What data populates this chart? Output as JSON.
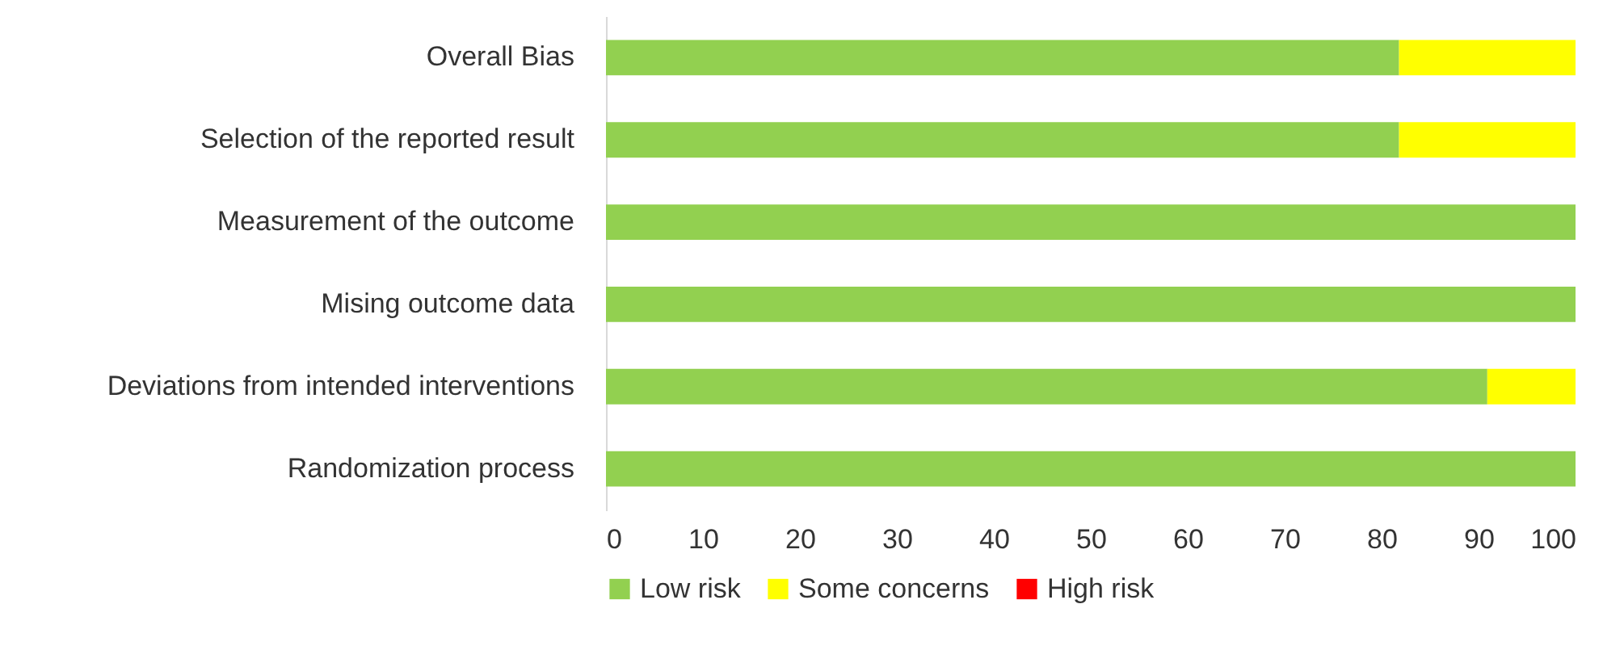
{
  "chart_data": {
    "type": "bar",
    "orientation": "horizontal",
    "stacked": true,
    "categories": [
      "Overall Bias",
      "Selection of the reported result",
      "Measurement of the outcome",
      "Mising outcome data",
      "Deviations from intended interventions",
      "Randomization process"
    ],
    "series": [
      {
        "name": "Low risk",
        "color": "#92d050",
        "values": [
          81.8,
          81.8,
          100,
          100,
          90.9,
          100
        ]
      },
      {
        "name": "Some concerns",
        "color": "#ffff00",
        "values": [
          18.2,
          18.2,
          0,
          0,
          9.1,
          0
        ]
      },
      {
        "name": "High risk",
        "color": "#ff0000",
        "values": [
          0,
          0,
          0,
          0,
          0,
          0
        ]
      }
    ],
    "xlim": [
      0,
      100
    ],
    "xticks": [
      0,
      10,
      20,
      30,
      40,
      50,
      60,
      70,
      80,
      90,
      100
    ],
    "grid": false,
    "legend": "bottom"
  }
}
